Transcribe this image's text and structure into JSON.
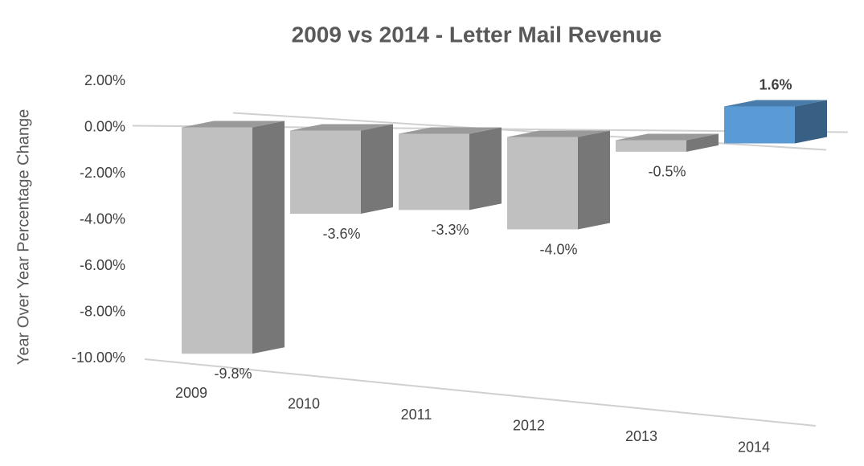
{
  "chart_data": {
    "type": "bar3d",
    "title": "2009 vs 2014 - Letter Mail Revenue",
    "y_label": "Year Over Year Percentage Change",
    "categories": [
      "2009",
      "2010",
      "2011",
      "2012",
      "2013",
      "2014"
    ],
    "values": [
      -9.8,
      -3.6,
      -3.3,
      -4.0,
      -0.5,
      1.6
    ],
    "value_labels": [
      "-9.8%",
      "-3.6%",
      "-3.3%",
      "-4.0%",
      "-0.5%",
      "1.6%"
    ],
    "colors": [
      "#c0c0c0",
      "#c0c0c0",
      "#c0c0c0",
      "#c0c0c0",
      "#c0c0c0",
      "#5b9bd5"
    ],
    "ylim": [
      -10,
      2
    ],
    "yticks": [
      {
        "value": 2,
        "label": "2.00%"
      },
      {
        "value": 0,
        "label": "0.00%"
      },
      {
        "value": -2,
        "label": "-2.00%"
      },
      {
        "value": -4,
        "label": "-4.00%"
      },
      {
        "value": -6,
        "label": "-6.00%"
      },
      {
        "value": -8,
        "label": "-8.00%"
      },
      {
        "value": -10,
        "label": "-10.00%"
      }
    ],
    "grid": false
  }
}
